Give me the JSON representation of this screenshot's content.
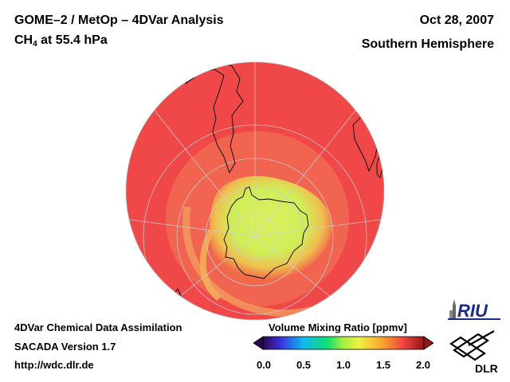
{
  "header": {
    "title": "GOME–2 / MetOp – 4DVar Analysis",
    "species_prefix": "CH",
    "species_subscript": "4",
    "level": " at 55.4 hPa",
    "date": "Oct 28, 2007",
    "region": "Southern Hemisphere"
  },
  "footer": {
    "line1": "4DVar Chemical Data Assimilation",
    "line2": "SACADA Version 1.7",
    "line3": "http://wdc.dlr.de"
  },
  "colorbar": {
    "title": "Volume Mixing Ratio [ppmv]",
    "ticks": [
      "0.0",
      "0.5",
      "1.0",
      "1.5",
      "2.0"
    ],
    "range": [
      0.0,
      2.0
    ],
    "stops": [
      {
        "value": 0.0,
        "color": "#2a0a4a"
      },
      {
        "value": 0.2,
        "color": "#3a2ad8"
      },
      {
        "value": 0.5,
        "color": "#10b8f0"
      },
      {
        "value": 0.8,
        "color": "#10e070"
      },
      {
        "value": 1.0,
        "color": "#a8f040"
      },
      {
        "value": 1.2,
        "color": "#f0f040"
      },
      {
        "value": 1.5,
        "color": "#f8a030"
      },
      {
        "value": 1.75,
        "color": "#f04040"
      },
      {
        "value": 2.0,
        "color": "#901818"
      }
    ]
  },
  "map": {
    "projection": "orthographic, south pole",
    "background_color": "#f04848",
    "polar_vortex_color": "#d0ee58",
    "transition_color": "#f2a85a",
    "gridline_color": "#c8c8c8",
    "coastline_color": "#000000"
  },
  "logos": {
    "riu": "RIU",
    "dlr": "DLR"
  }
}
